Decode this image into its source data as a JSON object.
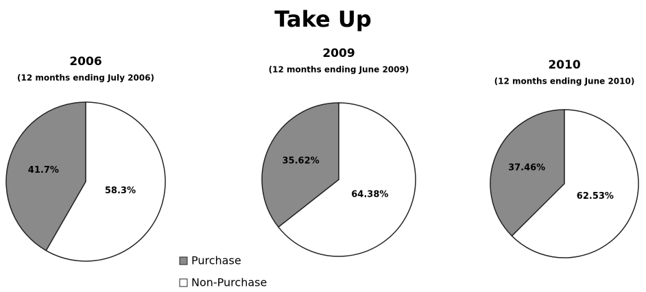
{
  "title": "Take Up",
  "chart_data": [
    {
      "type": "pie",
      "title": "2006",
      "subtitle": "(12 months ending July 2006)",
      "categories": [
        "Purchase",
        "Non-Purchase"
      ],
      "values": [
        41.7,
        58.3
      ],
      "value_labels": [
        "41.7%",
        "58.3%"
      ],
      "colors": [
        "#8a8a8a",
        "#ffffff"
      ]
    },
    {
      "type": "pie",
      "title": "2009",
      "subtitle": "(12 months ending June 2009)",
      "categories": [
        "Purchase",
        "Non-Purchase"
      ],
      "values": [
        35.62,
        64.38
      ],
      "value_labels": [
        "35.62%",
        "64.38%"
      ],
      "colors": [
        "#8a8a8a",
        "#ffffff"
      ]
    },
    {
      "type": "pie",
      "title": "2010",
      "subtitle": "(12 months ending June 2010)",
      "categories": [
        "Purchase",
        "Non-Purchase"
      ],
      "values": [
        37.46,
        62.53
      ],
      "value_labels": [
        "37.46%",
        "62.53%"
      ],
      "colors": [
        "#8a8a8a",
        "#ffffff"
      ]
    }
  ]
}
